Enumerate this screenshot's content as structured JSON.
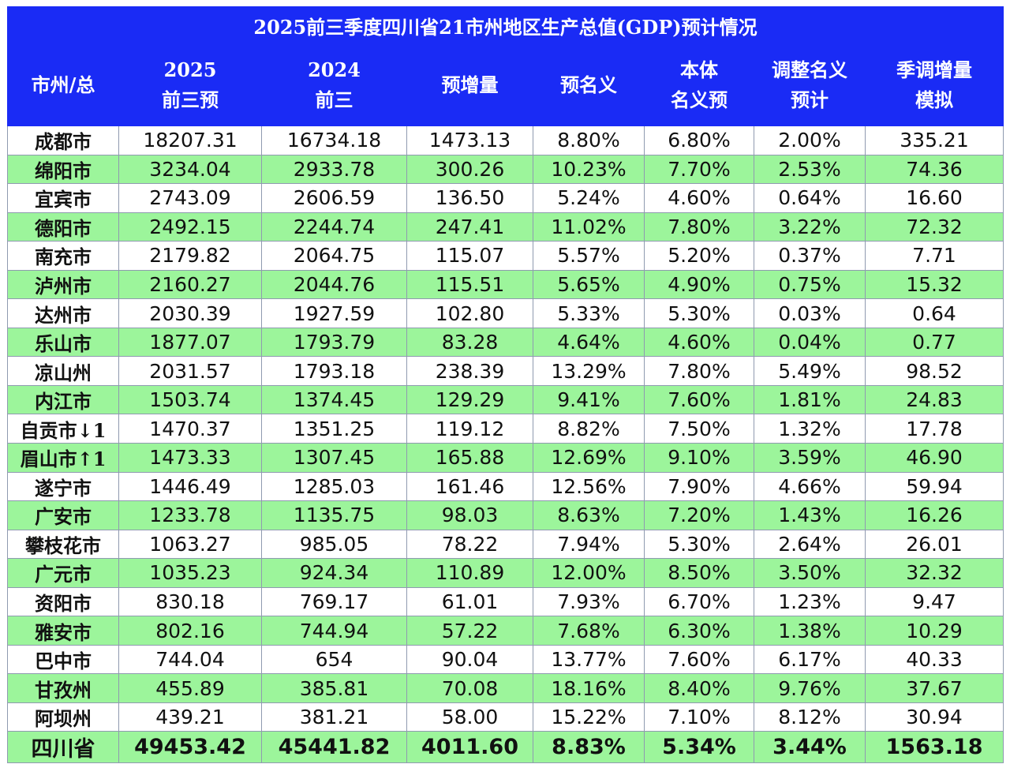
{
  "colors": {
    "header_bg": "#1a2bf5",
    "header_text": "#ffffff",
    "row_green": "#9cf59b",
    "row_white": "#ffffff"
  },
  "chart_data": {
    "type": "table",
    "title": "2025前三季度四川省21市州地区生产总值(GDP)预计情况",
    "columns": [
      "市州/总",
      "2025\n前三预",
      "2024\n前三",
      "预增量",
      "预名义",
      "本体\n名义预",
      "调整名义\n预计",
      "季调增量\n模拟"
    ],
    "rows": [
      [
        "成都市",
        "18207.31",
        "16734.18",
        "1473.13",
        "8.80%",
        "6.80%",
        "2.00%",
        "335.21"
      ],
      [
        "绵阳市",
        "3234.04",
        "2933.78",
        "300.26",
        "10.23%",
        "7.70%",
        "2.53%",
        "74.36"
      ],
      [
        "宜宾市",
        "2743.09",
        "2606.59",
        "136.50",
        "5.24%",
        "4.60%",
        "0.64%",
        "16.60"
      ],
      [
        "德阳市",
        "2492.15",
        "2244.74",
        "247.41",
        "11.02%",
        "7.80%",
        "3.22%",
        "72.32"
      ],
      [
        "南充市",
        "2179.82",
        "2064.75",
        "115.07",
        "5.57%",
        "5.20%",
        "0.37%",
        "7.71"
      ],
      [
        "泸州市",
        "2160.27",
        "2044.76",
        "115.51",
        "5.65%",
        "4.90%",
        "0.75%",
        "15.32"
      ],
      [
        "达州市",
        "2030.39",
        "1927.59",
        "102.80",
        "5.33%",
        "5.30%",
        "0.03%",
        "0.64"
      ],
      [
        "乐山市",
        "1877.07",
        "1793.79",
        "83.28",
        "4.64%",
        "4.60%",
        "0.04%",
        "0.77"
      ],
      [
        "凉山州",
        "2031.57",
        "1793.18",
        "238.39",
        "13.29%",
        "7.80%",
        "5.49%",
        "98.52"
      ],
      [
        "内江市",
        "1503.74",
        "1374.45",
        "129.29",
        "9.41%",
        "7.60%",
        "1.81%",
        "24.83"
      ],
      [
        "自贡市↓1",
        "1470.37",
        "1351.25",
        "119.12",
        "8.82%",
        "7.50%",
        "1.32%",
        "17.78"
      ],
      [
        "眉山市↑1",
        "1473.33",
        "1307.45",
        "165.88",
        "12.69%",
        "9.10%",
        "3.59%",
        "46.90"
      ],
      [
        "遂宁市",
        "1446.49",
        "1285.03",
        "161.46",
        "12.56%",
        "7.90%",
        "4.66%",
        "59.94"
      ],
      [
        "广安市",
        "1233.78",
        "1135.75",
        "98.03",
        "8.63%",
        "7.20%",
        "1.43%",
        "16.26"
      ],
      [
        "攀枝花市",
        "1063.27",
        "985.05",
        "78.22",
        "7.94%",
        "5.30%",
        "2.64%",
        "26.01"
      ],
      [
        "广元市",
        "1035.23",
        "924.34",
        "110.89",
        "12.00%",
        "8.50%",
        "3.50%",
        "32.32"
      ],
      [
        "资阳市",
        "830.18",
        "769.17",
        "61.01",
        "7.93%",
        "6.70%",
        "1.23%",
        "9.47"
      ],
      [
        "雅安市",
        "802.16",
        "744.94",
        "57.22",
        "7.68%",
        "6.30%",
        "1.38%",
        "10.29"
      ],
      [
        "巴中市",
        "744.04",
        "654",
        "90.04",
        "13.77%",
        "7.60%",
        "6.17%",
        "40.33"
      ],
      [
        "甘孜州",
        "455.89",
        "385.81",
        "70.08",
        "18.16%",
        "8.40%",
        "9.76%",
        "37.67"
      ],
      [
        "阿坝州",
        "439.21",
        "381.21",
        "58.00",
        "15.22%",
        "7.10%",
        "8.12%",
        "30.94"
      ]
    ],
    "total": [
      "四川省",
      "49453.42",
      "45441.82",
      "4011.60",
      "8.83%",
      "5.34%",
      "3.44%",
      "1563.18"
    ]
  }
}
